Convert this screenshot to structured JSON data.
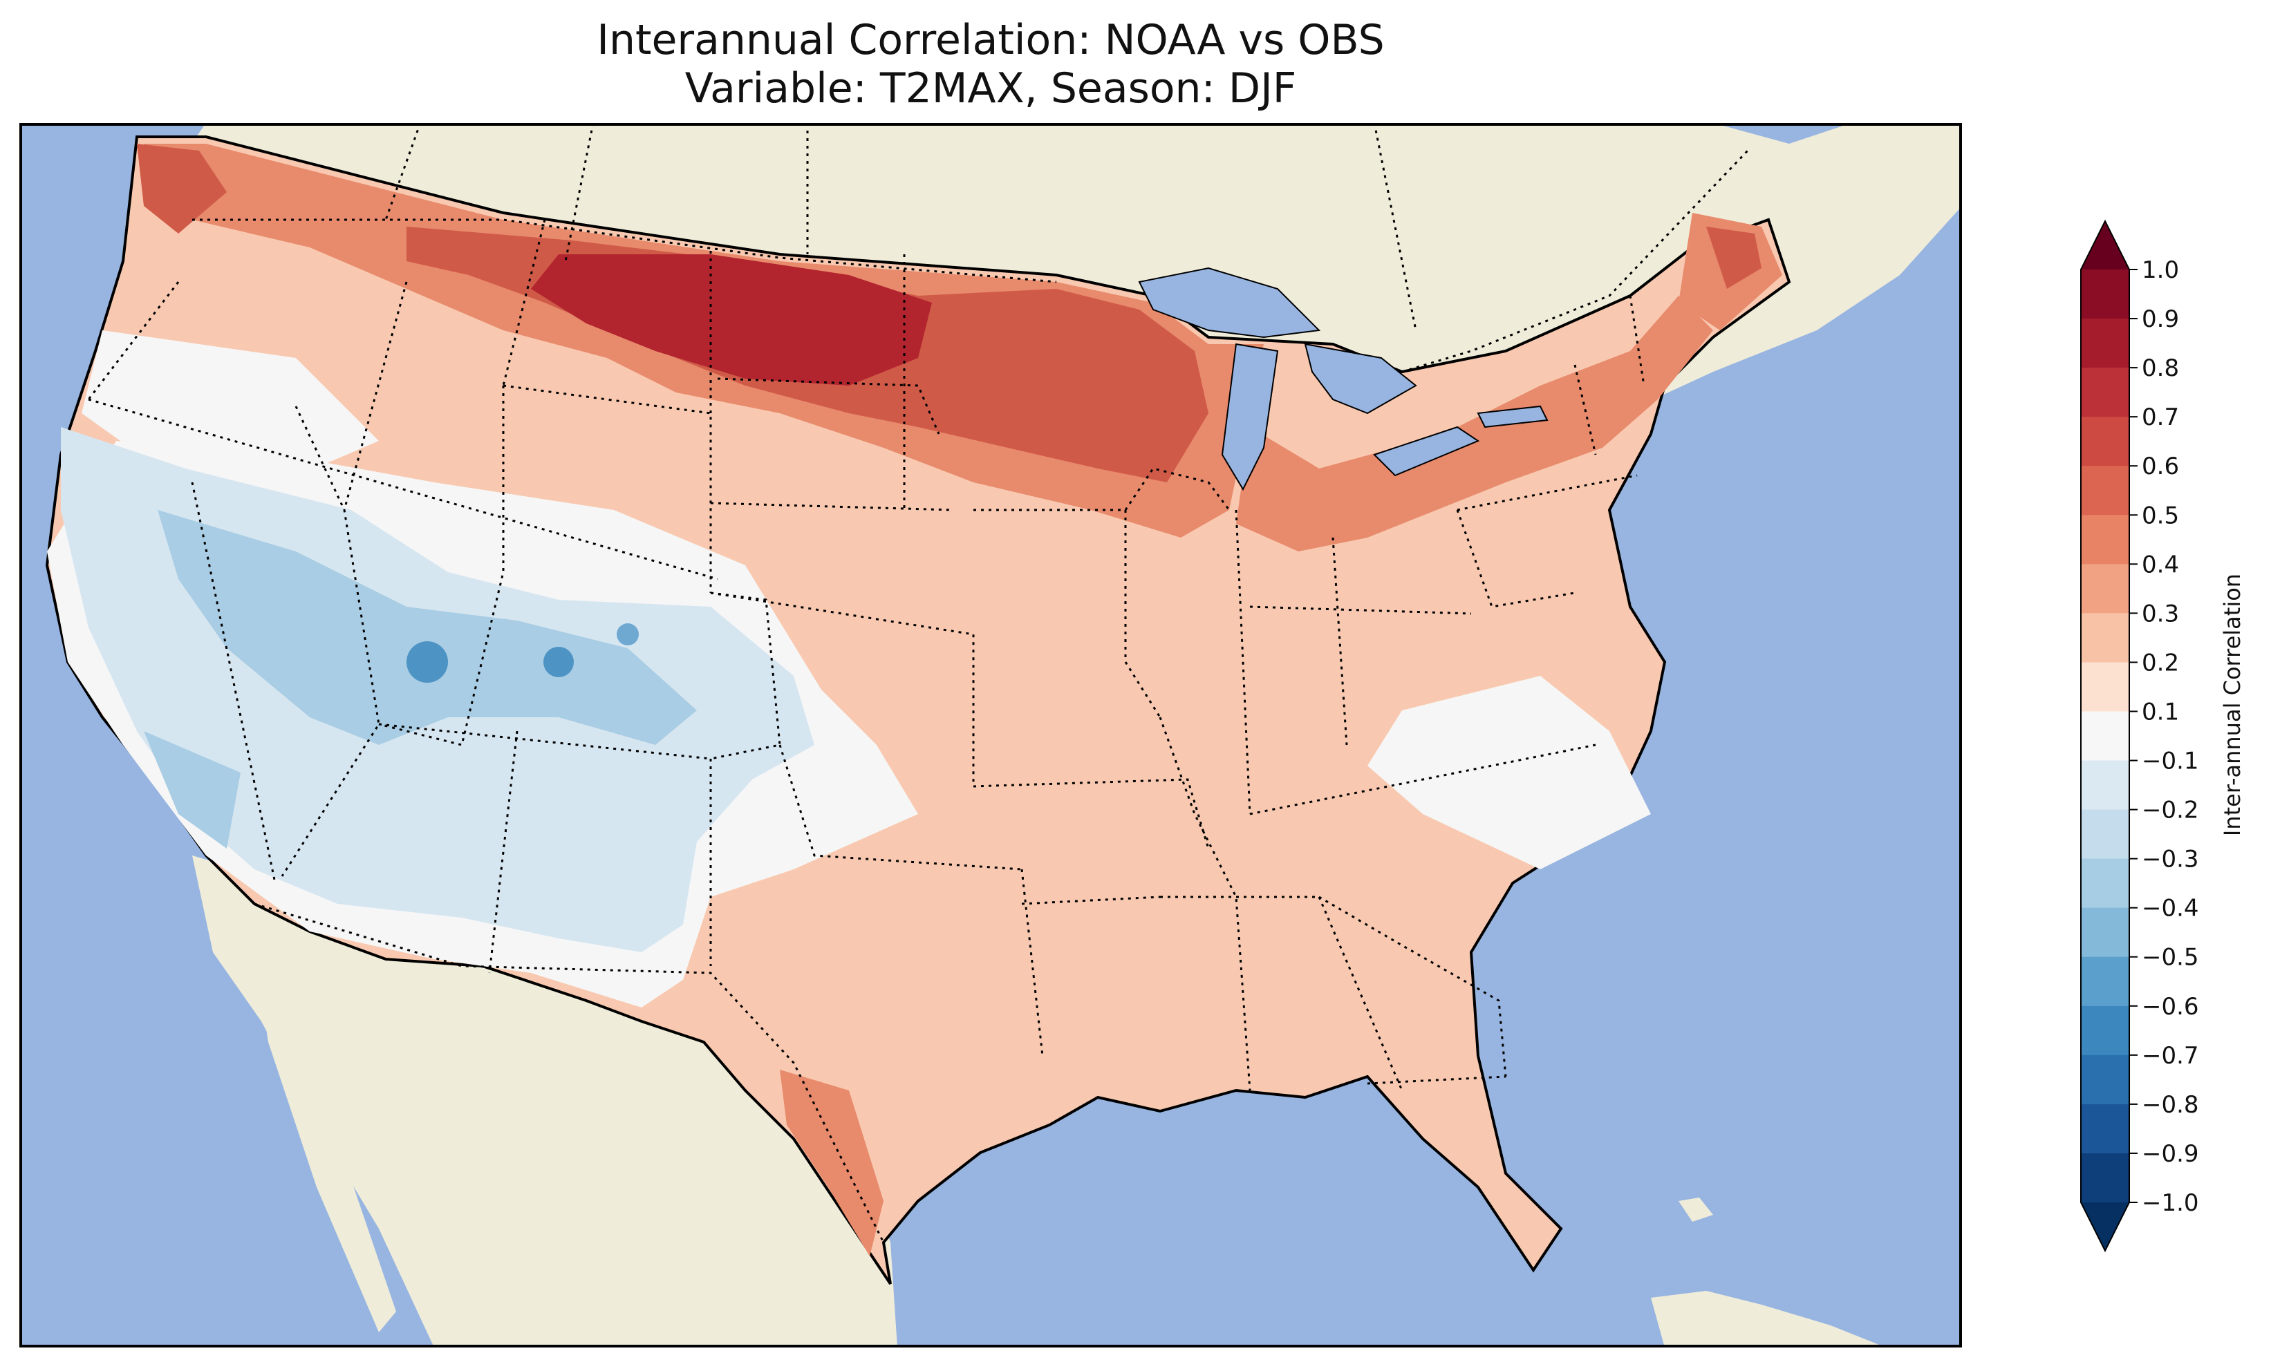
{
  "title": "Interannual Correlation: NOAA vs OBS",
  "subtitle": "Variable: T2MAX, Season: DJF",
  "colorbar": {
    "label": "Inter-annual Correlation",
    "ticks": [
      "1.0",
      "0.9",
      "0.8",
      "0.7",
      "0.6",
      "0.5",
      "0.4",
      "0.3",
      "0.2",
      "0.1",
      "−0.1",
      "−0.2",
      "−0.3",
      "−0.4",
      "−0.5",
      "−0.6",
      "−0.7",
      "−0.8",
      "−0.9",
      "−1.0"
    ],
    "colors": [
      "#67001f",
      "#8b0c25",
      "#a51d2d",
      "#bc3038",
      "#cd4a43",
      "#dc6552",
      "#e88465",
      "#f1a282",
      "#f8c2a6",
      "#fce0d0",
      "#f7f7f7",
      "#dbe9f3",
      "#c4dcec",
      "#a6cde4",
      "#84b9da",
      "#5b9fcc",
      "#3d87bf",
      "#2a6fae",
      "#1b5798",
      "#0e3f7a",
      "#053061"
    ]
  },
  "map": {
    "colors": {
      "ocean": "#98b5e1",
      "land": "#efedda",
      "strong_positive": "#b2242e",
      "positive_high": "#d05a48",
      "positive_mid": "#e88a6c",
      "positive_low": "#f6bda1",
      "neutral": "#f6f6f6",
      "negative_low": "#d6e6f1",
      "negative_mid": "#a9cde4",
      "negative_high": "#4d93c4"
    }
  }
}
